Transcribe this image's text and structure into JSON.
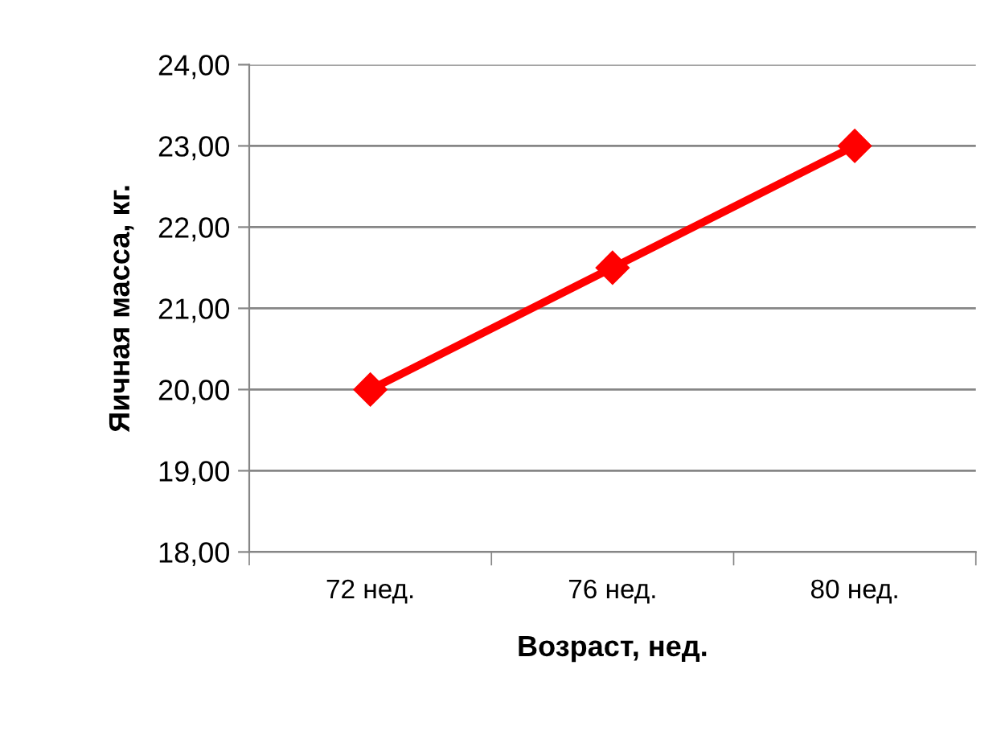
{
  "chart_data": {
    "type": "line",
    "xlabel": "Возраст, нед.",
    "ylabel": "Яичная масса, кг.",
    "categories": [
      "72 нед.",
      "76 нед.",
      "80 нед."
    ],
    "series": [
      {
        "color": "#ff0000",
        "values": [
          20.0,
          21.5,
          23.0
        ]
      }
    ],
    "ylim": [
      18,
      24
    ],
    "yticks": [
      {
        "value": 18,
        "label": "18,00"
      },
      {
        "value": 19,
        "label": "19,00"
      },
      {
        "value": 20,
        "label": "20,00"
      },
      {
        "value": 21,
        "label": "21,00"
      },
      {
        "value": 22,
        "label": "22,00"
      },
      {
        "value": 23,
        "label": "23,00"
      },
      {
        "value": 24,
        "label": "24,00"
      }
    ],
    "grid": "y",
    "legend": false,
    "marker": "diamond",
    "line_style": "solid"
  }
}
